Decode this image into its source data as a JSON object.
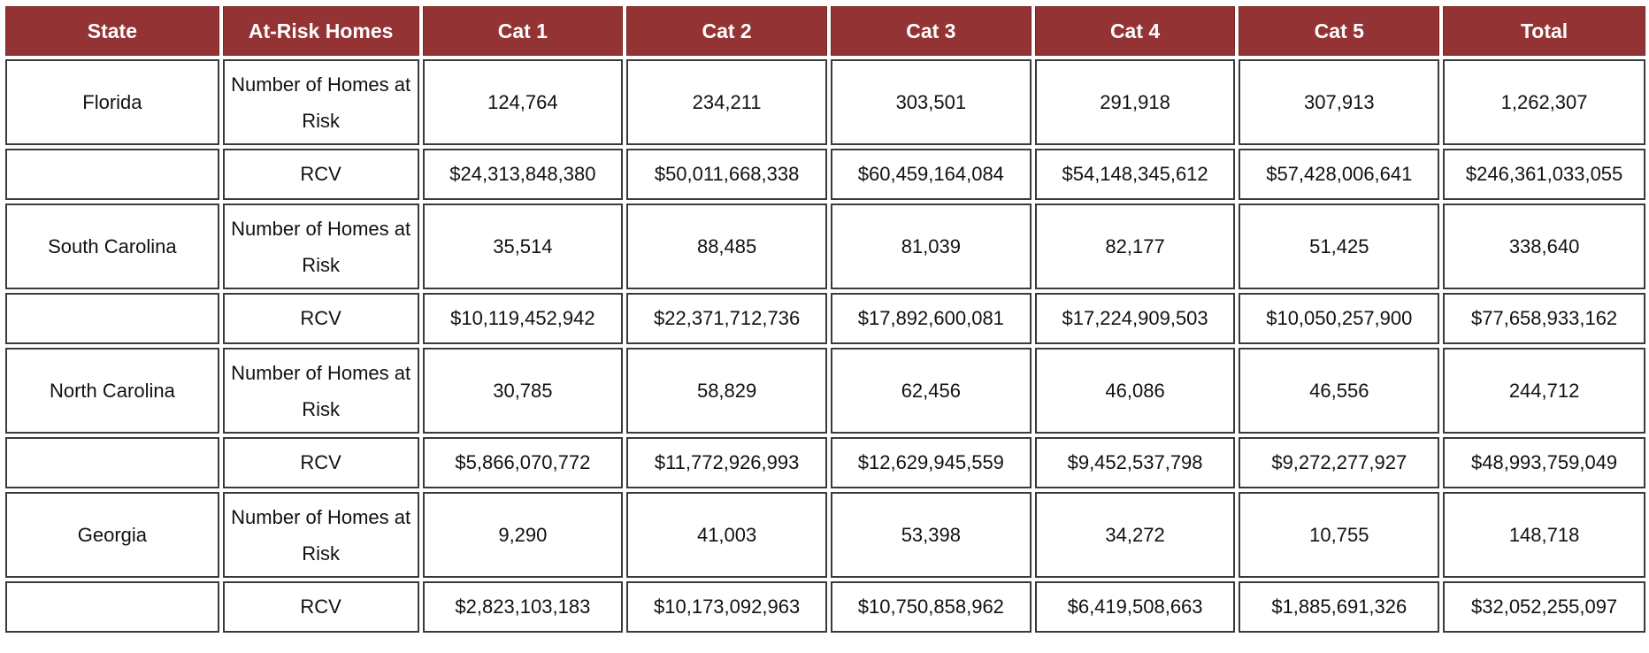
{
  "table": {
    "headers": [
      "State",
      "At-Risk Homes",
      "Cat 1",
      "Cat 2",
      "Cat 3",
      "Cat 4",
      "Cat 5",
      "Total"
    ],
    "rows": [
      {
        "state": "Florida",
        "homes": {
          "label": "Number of Homes at Risk",
          "values": [
            "124,764",
            "234,211",
            "303,501",
            "291,918",
            "307,913",
            "1,262,307"
          ]
        },
        "rcv": {
          "label": "RCV",
          "values": [
            "$24,313,848,380",
            "$50,011,668,338",
            "$60,459,164,084",
            "$54,148,345,612",
            "$57,428,006,641",
            "$246,361,033,055"
          ]
        }
      },
      {
        "state": "South Carolina",
        "homes": {
          "label": "Number of Homes at Risk",
          "values": [
            "35,514",
            "88,485",
            "81,039",
            "82,177",
            "51,425",
            "338,640"
          ]
        },
        "rcv": {
          "label": "RCV",
          "values": [
            "$10,119,452,942",
            "$22,371,712,736",
            "$17,892,600,081",
            "$17,224,909,503",
            "$10,050,257,900",
            "$77,658,933,162"
          ]
        }
      },
      {
        "state": "North Carolina",
        "homes": {
          "label": "Number of Homes at Risk",
          "values": [
            "30,785",
            "58,829",
            "62,456",
            "46,086",
            "46,556",
            "244,712"
          ]
        },
        "rcv": {
          "label": "RCV",
          "values": [
            "$5,866,070,772",
            "$11,772,926,993",
            "$12,629,945,559",
            "$9,452,537,798",
            "$9,272,277,927",
            "$48,993,759,049"
          ]
        }
      },
      {
        "state": "Georgia",
        "homes": {
          "label": "Number of Homes at Risk",
          "values": [
            "9,290",
            "41,003",
            "53,398",
            "34,272",
            "10,755",
            "148,718"
          ]
        },
        "rcv": {
          "label": "RCV",
          "values": [
            "$2,823,103,183",
            "$10,173,092,963",
            "$10,750,858,962",
            "$6,419,508,663",
            "$1,885,691,326",
            "$32,052,255,097"
          ]
        }
      }
    ]
  },
  "colors": {
    "header_bg": "#933334",
    "header_text": "#ffffff",
    "cell_border": "#3a3a3a"
  }
}
